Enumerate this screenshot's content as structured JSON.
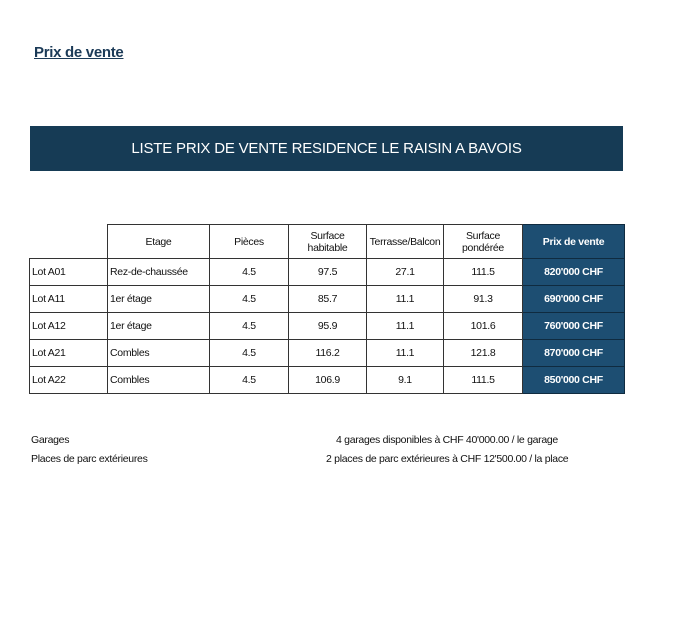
{
  "title": "Prix de vente",
  "banner": "LISTE PRIX DE VENTE RESIDENCE LE RAISIN A BAVOIS",
  "colors": {
    "banner": "#163b55",
    "price_cells": "#1d4e72"
  },
  "table": {
    "headers": [
      "",
      "Etage",
      "Pièces",
      "Surface habitable",
      "Terrasse/Balcon",
      "Surface pondérée",
      "Prix de vente"
    ],
    "rows": [
      [
        "Lot A01",
        "Rez-de-chaussée",
        "4.5",
        "97.5",
        "27.1",
        "111.5",
        "820'000 CHF"
      ],
      [
        "Lot A11",
        "1er étage",
        "4.5",
        "85.7",
        "11.1",
        "91.3",
        "690'000 CHF"
      ],
      [
        "Lot A12",
        "1er étage",
        "4.5",
        "95.9",
        "11.1",
        "101.6",
        "760'000 CHF"
      ],
      [
        "Lot A21",
        "Combles",
        "4.5",
        "116.2",
        "11.1",
        "121.8",
        "870'000 CHF"
      ],
      [
        "Lot A22",
        "Combles",
        "4.5",
        "106.9",
        "9.1",
        "111.5",
        "850'000 CHF"
      ]
    ]
  },
  "footer": [
    {
      "label": "Garages",
      "value": "4 garages disponibles à CHF 40'000.00 / le garage"
    },
    {
      "label": "Places de parc extérieures",
      "value": "2 places de parc extérieures à CHF 12'500.00 / la place"
    }
  ]
}
